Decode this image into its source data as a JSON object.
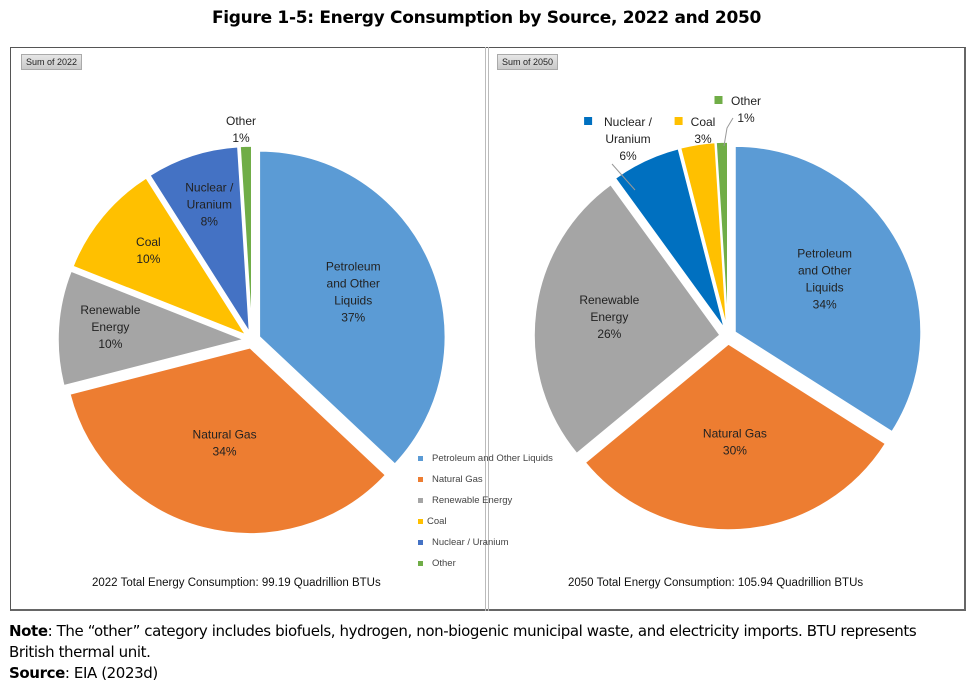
{
  "figure": {
    "title": "Figure 1-5:  Energy Consumption by Source, 2022 and 2050"
  },
  "panels": [
    {
      "tag": "Sum of 2022",
      "total_text": "2022 Total Energy Consumption: 99.19 Quadrillion BTUs"
    },
    {
      "tag": "Sum of 2050",
      "total_text": "2050 Total Energy Consumption: 105.94 Quadrillion BTUs"
    }
  ],
  "legend": [
    {
      "label": "Petroleum and Other Liquids",
      "color": "#5B9BD5"
    },
    {
      "label": "Natural Gas",
      "color": "#ED7D31"
    },
    {
      "label": "Renewable Energy",
      "color": "#A5A5A5"
    },
    {
      "label": "Coal",
      "color": "#FFC000"
    },
    {
      "label": "Nuclear / Uranium",
      "color": "#4472C4"
    },
    {
      "label": "Other",
      "color": "#70AD47"
    }
  ],
  "note": {
    "note_label": "Note",
    "note_text": ": The “other” category includes biofuels, hydrogen, non-biogenic municipal waste, and electricity imports.  BTU represents British thermal unit.",
    "source_label": "Source",
    "source_text": ": EIA (2023d)"
  },
  "chart_data": [
    {
      "type": "pie",
      "title": "Sum of 2022",
      "annotation": "2022 Total Energy Consumption: 99.19 Quadrillion BTUs",
      "legend_position": "right",
      "categories": [
        "Petroleum and Other Liquids",
        "Natural Gas",
        "Renewable Energy",
        "Coal",
        "Nuclear / Uranium",
        "Other"
      ],
      "values": [
        37,
        34,
        10,
        10,
        8,
        1
      ],
      "unit": "%",
      "slices": [
        {
          "label": [
            "Petroleum",
            "and Other",
            "Liquids"
          ],
          "value": 37,
          "color": "#5B9BD5"
        },
        {
          "label": [
            "Natural Gas"
          ],
          "value": 34,
          "color": "#ED7D31"
        },
        {
          "label": [
            "Renewable",
            "Energy"
          ],
          "value": 10,
          "color": "#A5A5A5"
        },
        {
          "label": [
            "Coal"
          ],
          "value": 10,
          "color": "#FFC000"
        },
        {
          "label": [
            "Nuclear /",
            "Uranium"
          ],
          "value": 8,
          "color": "#4472C4"
        },
        {
          "label": [
            "Other"
          ],
          "value": 1,
          "color": "#70AD47"
        }
      ]
    },
    {
      "type": "pie",
      "title": "Sum of 2050",
      "annotation": "2050 Total Energy Consumption: 105.94 Quadrillion BTUs",
      "legend_position": "left",
      "categories": [
        "Petroleum and Other Liquids",
        "Natural Gas",
        "Renewable Energy",
        "Nuclear / Uranium",
        "Coal",
        "Other"
      ],
      "values": [
        34,
        30,
        26,
        6,
        3,
        1
      ],
      "unit": "%",
      "slices": [
        {
          "label": [
            "Petroleum",
            "and Other",
            "Liquids"
          ],
          "value": 34,
          "color": "#5B9BD5"
        },
        {
          "label": [
            "Natural Gas"
          ],
          "value": 30,
          "color": "#ED7D31"
        },
        {
          "label": [
            "Renewable",
            "Energy"
          ],
          "value": 26,
          "color": "#A5A5A5"
        },
        {
          "label": [
            "Nuclear /",
            "Uranium"
          ],
          "value": 6,
          "color": "#0070C0"
        },
        {
          "label": [
            "Coal"
          ],
          "value": 3,
          "color": "#FFC000"
        },
        {
          "label": [
            "Other"
          ],
          "value": 1,
          "color": "#70AD47"
        }
      ]
    }
  ]
}
